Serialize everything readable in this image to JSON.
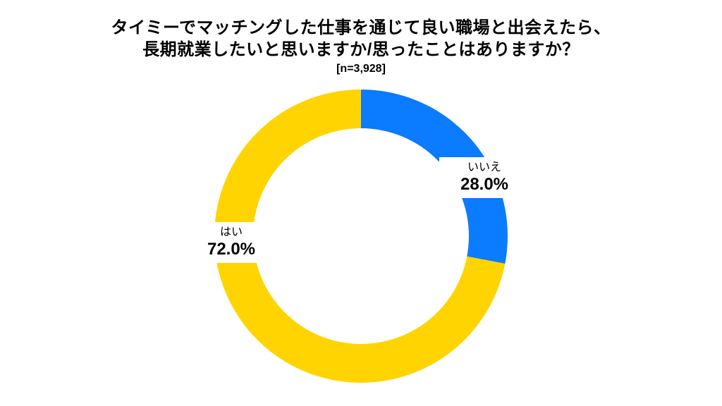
{
  "chart_data": {
    "type": "pie",
    "subtype": "donut",
    "title_lines": [
      "タイミーでマッチングした仕事を通じて良い職場と出会えたら、",
      "長期就業したいと思いますか/思ったことはありますか？"
    ],
    "sample_label": "[n=3,928]",
    "series": [
      {
        "name": "いいえ",
        "value": 28.0,
        "display": "28.0%",
        "color": "#0B7BFF"
      },
      {
        "name": "はい",
        "value": 72.0,
        "display": "72.0%",
        "color": "#FFD400"
      }
    ],
    "unit": "%",
    "start_angle_deg": 0,
    "direction": "clockwise",
    "donut_hole_ratio": 0.735,
    "legend": "none",
    "background": "#FFFFFF",
    "label_style": "category-name-and-percent-on-ring-white-boxes"
  }
}
